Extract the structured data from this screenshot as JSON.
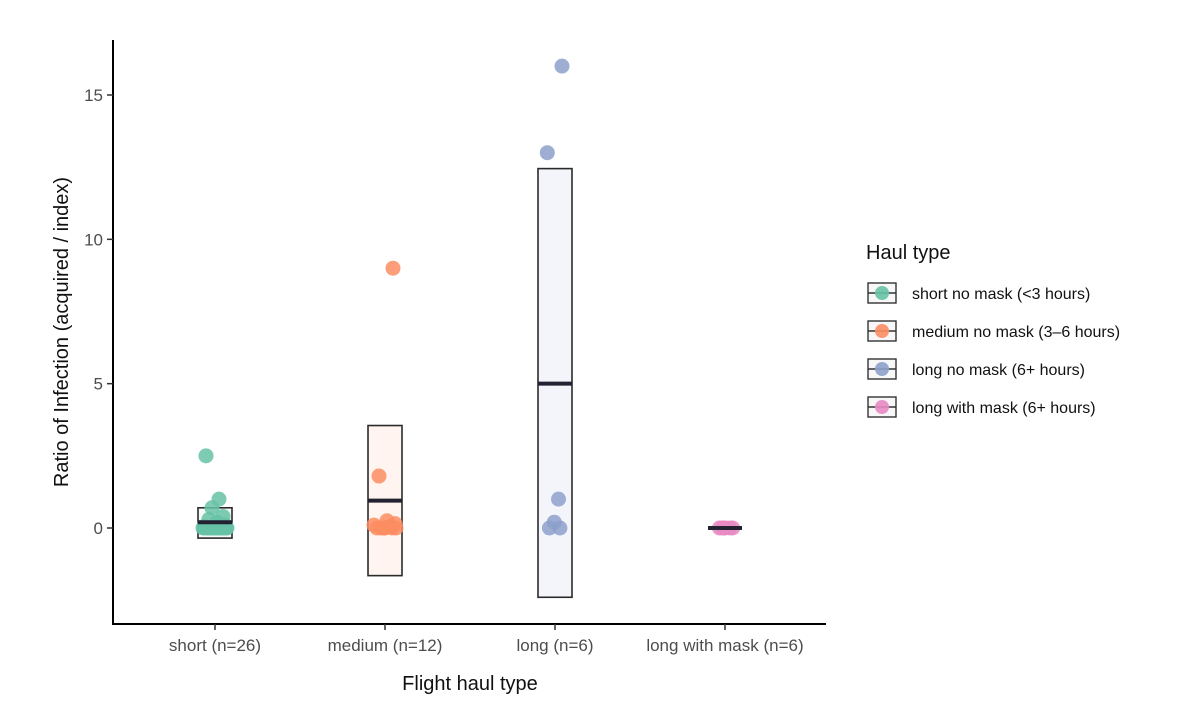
{
  "chart_data": {
    "type": "scatter",
    "subtype": "jitter-with-mean-ci-box",
    "title": "",
    "xlabel": "Flight haul type",
    "ylabel": "Ratio of Infection (acquired / index)",
    "ylim": [
      -3.3,
      16.9
    ],
    "yticks": [
      0,
      5,
      10,
      15
    ],
    "grid": false,
    "legend": {
      "title": "Haul type",
      "position": "right",
      "entries": [
        {
          "label": "short no mask (<3 hours)",
          "color": "#66c2a5"
        },
        {
          "label": "medium no mask (3–6 hours)",
          "color": "#fc8d62"
        },
        {
          "label": "long no mask (6+ hours)",
          "color": "#8da0cb"
        },
        {
          "label": "long with mask (6+ hours)",
          "color": "#e78ac3"
        }
      ]
    },
    "categories": [
      "short (n=26)",
      "medium (n=12)",
      "long (n=6)",
      "long with mask (n=6)"
    ],
    "groups": [
      {
        "category": "short (n=26)",
        "color": "#66c2a5",
        "box_fill": "#f6fbf9",
        "mean": 0.2,
        "box_low": -0.35,
        "box_high": 0.7,
        "points": [
          2.5,
          1.0,
          0.7,
          0.4,
          0.3,
          0.2,
          0.1,
          0.05,
          0.0,
          0.0,
          0.0,
          0.0,
          0.0,
          0.0,
          0.0,
          0.0,
          0.0,
          0.0,
          0.0,
          0.0,
          0.0,
          0.0,
          0.0,
          0.0,
          0.0,
          0.0
        ]
      },
      {
        "category": "medium (n=12)",
        "color": "#fc8d62",
        "box_fill": "#fff4ef",
        "mean": 0.95,
        "box_low": -1.65,
        "box_high": 3.55,
        "points": [
          9.0,
          1.8,
          0.25,
          0.15,
          0.1,
          0.05,
          0.0,
          0.0,
          0.0,
          0.0,
          0.0,
          0.0
        ]
      },
      {
        "category": "long (n=6)",
        "color": "#8da0cb",
        "box_fill": "#f4f5fa",
        "mean": 5.0,
        "box_low": -2.4,
        "box_high": 12.45,
        "points": [
          16.0,
          13.0,
          1.0,
          0.2,
          0.0,
          0.0
        ]
      },
      {
        "category": "long with mask (n=6)",
        "color": "#e78ac3",
        "box_fill": "#fdf3f9",
        "mean": 0.0,
        "box_low": 0.0,
        "box_high": 0.0,
        "points": [
          0.0,
          0.0,
          0.0,
          0.0,
          0.0,
          0.0
        ]
      }
    ]
  }
}
